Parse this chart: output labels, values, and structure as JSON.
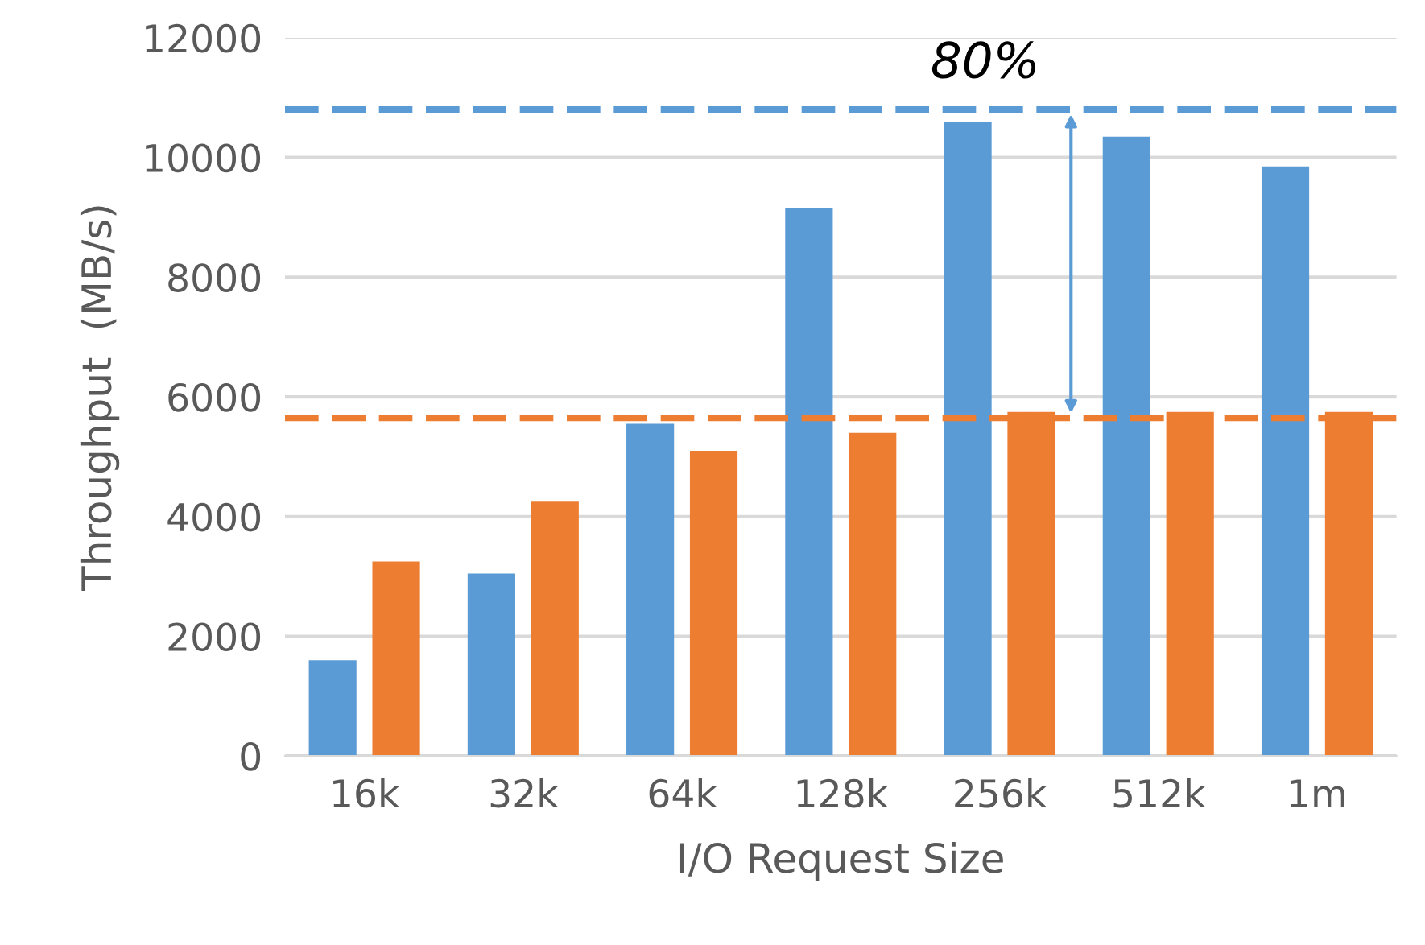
{
  "chart_data": {
    "type": "bar",
    "xlabel": "I/O Request Size",
    "ylabel": "Throughput  (MB/s)",
    "categories": [
      "16k",
      "32k",
      "64k",
      "128k",
      "256k",
      "512k",
      "1m"
    ],
    "series": [
      {
        "color": "#5b9bd5",
        "values": [
          1600,
          3050,
          5550,
          9150,
          10600,
          10350,
          9850
        ]
      },
      {
        "color": "#ed7d31",
        "values": [
          3250,
          4250,
          5100,
          5400,
          5750,
          5750,
          5750
        ]
      }
    ],
    "ylim": [
      0,
      12000
    ],
    "yticks": [
      0,
      2000,
      4000,
      6000,
      8000,
      10000,
      12000
    ],
    "grid": "y",
    "legend": false,
    "ref_lines": [
      {
        "axis": "y",
        "value": 10800,
        "color": "#5b9bd5",
        "line_style": "dashed"
      },
      {
        "axis": "y",
        "value": 5650,
        "color": "#ed7d31",
        "line_style": "dashed"
      }
    ],
    "annotations": [
      "80%"
    ]
  }
}
